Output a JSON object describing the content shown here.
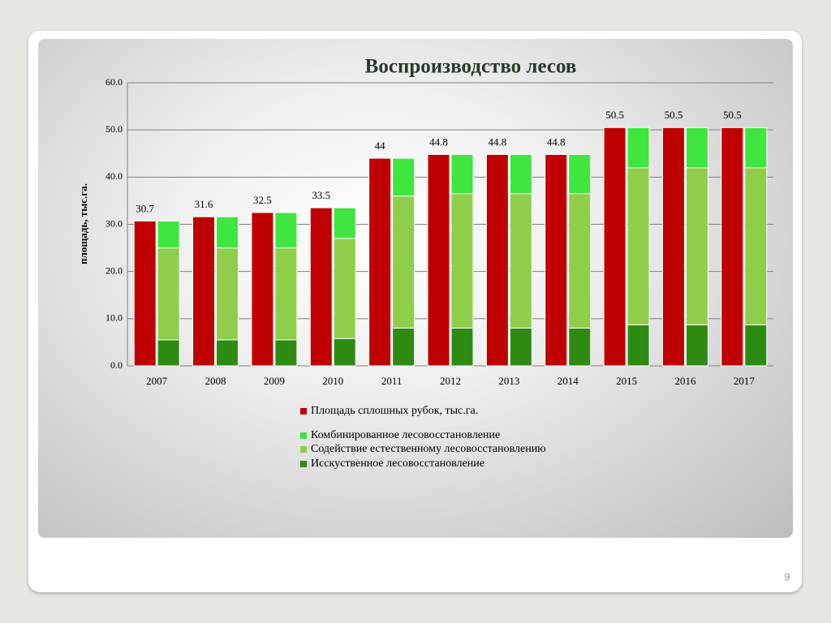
{
  "chart_data": {
    "type": "bar",
    "title": "Воспроизводство лесов",
    "ylabel": "площадь, тыс.га.",
    "categories": [
      "2007",
      "2008",
      "2009",
      "2010",
      "2011",
      "2012",
      "2013",
      "2014",
      "2015",
      "2016",
      "2017"
    ],
    "series": [
      {
        "name": "Площадь сплошных рубок, тыс.га.",
        "color": "#c00000",
        "stack": 0,
        "show_values": true,
        "values": [
          30.7,
          31.6,
          32.5,
          33.5,
          44,
          44.8,
          44.8,
          44.8,
          50.5,
          50.5,
          50.5
        ]
      },
      {
        "name": "Комбинированное лесовосстановление",
        "color": "#3fe63f",
        "stack": 1,
        "values": [
          5.7,
          6.6,
          7.5,
          6.5,
          8,
          8.3,
          8.3,
          8.3,
          8.5,
          8.5,
          8.5
        ]
      },
      {
        "name": "Содействие естественному лесовосстановлению",
        "color": "#8fce4a",
        "stack": 1,
        "values": [
          19.5,
          19.5,
          19.5,
          21.2,
          28,
          28.5,
          28.5,
          28.5,
          33.3,
          33.3,
          33.3
        ]
      },
      {
        "name": "Исскуственное лесовосстановление",
        "color": "#2e8b12",
        "stack": 1,
        "values": [
          5.5,
          5.5,
          5.5,
          5.8,
          8,
          8,
          8,
          8,
          8.7,
          8.7,
          8.7
        ]
      }
    ],
    "ylim": [
      0,
      60
    ],
    "yticks": [
      {
        "value": 0,
        "label": "0.0"
      },
      {
        "value": 10,
        "label": "10.0"
      },
      {
        "value": 20,
        "label": "20.0"
      },
      {
        "value": 30,
        "label": "30.0"
      },
      {
        "value": 40,
        "label": "40.0"
      },
      {
        "value": 50,
        "label": "50.0"
      },
      {
        "value": 60,
        "label": "60.0"
      }
    ],
    "grid": true
  },
  "page_number": "9"
}
